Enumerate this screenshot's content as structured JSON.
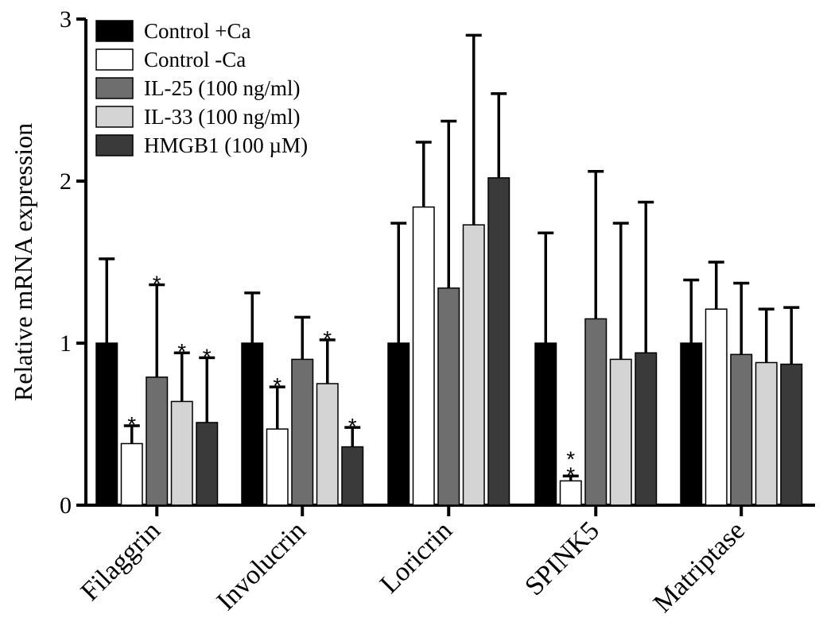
{
  "chart_data": {
    "type": "bar",
    "xlabel": "",
    "ylabel": "Relative mRNA expression",
    "ylim": [
      0,
      3
    ],
    "yticks": [
      0,
      1,
      2,
      3
    ],
    "categories": [
      "Filaggrin",
      "Involucrin",
      "Loricrin",
      "SPINK5",
      "Matriptase"
    ],
    "legend_position": "top-left",
    "grid": false,
    "series": [
      {
        "name": "Control +Ca",
        "color": "#000000",
        "values": [
          1.0,
          1.0,
          1.0,
          1.0,
          1.0
        ],
        "errors": [
          0.52,
          0.31,
          0.74,
          0.68,
          0.39
        ],
        "significance": [
          "",
          "",
          "",
          "",
          ""
        ]
      },
      {
        "name": "Control -Ca",
        "color": "#ffffff",
        "values": [
          0.38,
          0.47,
          1.84,
          0.15,
          1.21
        ],
        "errors": [
          0.11,
          0.26,
          0.4,
          0.03,
          0.29
        ],
        "significance": [
          "*",
          "*",
          "",
          "**",
          ""
        ]
      },
      {
        "name": "IL-25 (100 ng/ml)",
        "color": "#6e6e6e",
        "values": [
          0.79,
          0.9,
          1.34,
          1.15,
          0.93
        ],
        "errors": [
          0.57,
          0.26,
          1.03,
          0.91,
          0.44
        ],
        "significance": [
          "*",
          "",
          "",
          "",
          ""
        ]
      },
      {
        "name": "IL-33 (100 ng/ml)",
        "color": "#d4d4d4",
        "values": [
          0.64,
          0.75,
          1.73,
          0.9,
          0.88
        ],
        "errors": [
          0.3,
          0.27,
          1.17,
          0.84,
          0.33
        ],
        "significance": [
          "*",
          "*",
          "",
          "",
          ""
        ]
      },
      {
        "name": "HMGB1 (100 µM)",
        "color": "#3a3a3a",
        "values": [
          0.51,
          0.36,
          2.02,
          0.94,
          0.87
        ],
        "errors": [
          0.4,
          0.12,
          0.52,
          0.93,
          0.35
        ],
        "significance": [
          "*",
          "*",
          "",
          "",
          ""
        ]
      }
    ]
  }
}
